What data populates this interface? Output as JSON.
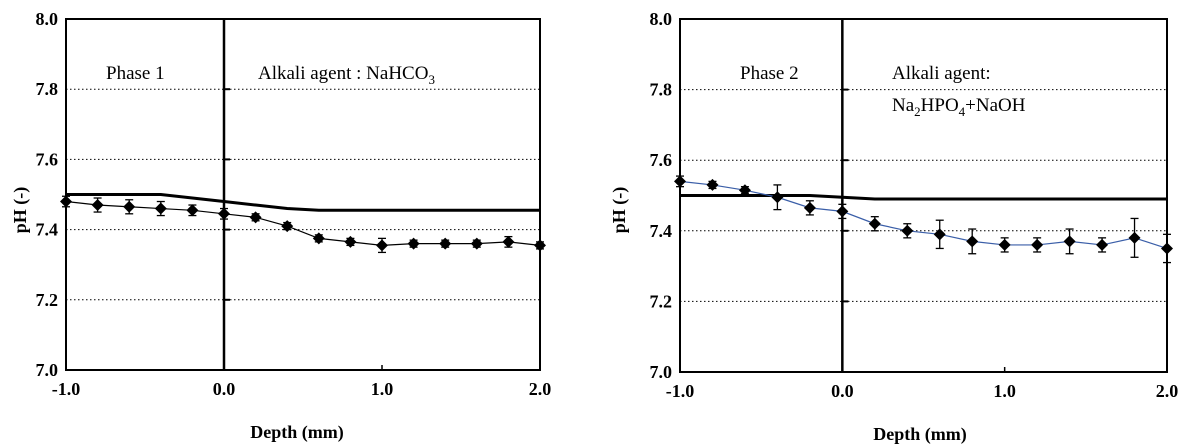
{
  "chart_data": [
    {
      "type": "line",
      "xlabel": "Depth (mm)",
      "ylabel": "pH (-)",
      "xlim": [
        -1.0,
        2.0
      ],
      "ylim": [
        7.0,
        8.0
      ],
      "xticks": [
        "-1.0",
        "0.0",
        "1.0",
        "2.0"
      ],
      "yticks": [
        "7.0",
        "7.2",
        "7.4",
        "7.6",
        "7.8",
        "8.0"
      ],
      "grid": "horizontal dotted",
      "annotations": {
        "phase": "Phase 1",
        "agent_prefix": "Alkali agent : NaHCO",
        "agent_sub": "3"
      },
      "series": [
        {
          "style": "markers-with-error-bars",
          "x": [
            -1.0,
            -0.8,
            -0.6,
            -0.4,
            -0.2,
            0.0,
            0.2,
            0.4,
            0.6,
            0.8,
            1.0,
            1.2,
            1.4,
            1.6,
            1.8,
            2.0
          ],
          "values": [
            7.48,
            7.47,
            7.465,
            7.46,
            7.455,
            7.445,
            7.435,
            7.41,
            7.375,
            7.365,
            7.355,
            7.36,
            7.36,
            7.36,
            7.365,
            7.355
          ],
          "error": [
            0.015,
            0.02,
            0.02,
            0.02,
            0.015,
            0.015,
            0.01,
            0.01,
            0.01,
            0.01,
            0.02,
            0.01,
            0.01,
            0.01,
            0.015,
            0.01
          ]
        },
        {
          "style": "thick-line",
          "x": [
            -1.0,
            -0.4,
            -0.2,
            0.0,
            0.2,
            0.4,
            0.6,
            2.0
          ],
          "values": [
            7.5,
            7.5,
            7.49,
            7.48,
            7.47,
            7.46,
            7.455,
            7.455
          ]
        }
      ]
    },
    {
      "type": "line",
      "xlabel": "Depth (mm)",
      "ylabel": "pH (-)",
      "xlim": [
        -1.0,
        2.0
      ],
      "ylim": [
        7.0,
        8.0
      ],
      "xticks": [
        "-1.0",
        "0.0",
        "1.0",
        "2.0"
      ],
      "yticks": [
        "7.0",
        "7.2",
        "7.4",
        "7.6",
        "7.8",
        "8.0"
      ],
      "grid": "horizontal dotted",
      "annotations": {
        "phase": "Phase 2",
        "agent_line1": "Alkali agent:",
        "agent_line2_a": "Na",
        "agent_line2_sub1": "2",
        "agent_line2_b": "HPO",
        "agent_line2_sub2": "4",
        "agent_line2_c": "+NaOH"
      },
      "series": [
        {
          "style": "markers-with-error-bars",
          "x": [
            -1.0,
            -0.8,
            -0.6,
            -0.4,
            -0.2,
            0.0,
            0.2,
            0.4,
            0.6,
            0.8,
            1.0,
            1.2,
            1.4,
            1.6,
            1.8,
            2.0
          ],
          "values": [
            7.54,
            7.53,
            7.515,
            7.495,
            7.465,
            7.455,
            7.42,
            7.4,
            7.39,
            7.37,
            7.36,
            7.36,
            7.37,
            7.36,
            7.38,
            7.35
          ],
          "error": [
            0.015,
            0.01,
            0.01,
            0.035,
            0.02,
            0.02,
            0.02,
            0.02,
            0.04,
            0.035,
            0.02,
            0.02,
            0.035,
            0.02,
            0.055,
            0.04
          ]
        },
        {
          "style": "thick-line",
          "x": [
            -1.0,
            -0.4,
            -0.2,
            0.0,
            0.2,
            2.0
          ],
          "values": [
            7.5,
            7.5,
            7.5,
            7.495,
            7.49,
            7.49
          ]
        }
      ]
    }
  ]
}
